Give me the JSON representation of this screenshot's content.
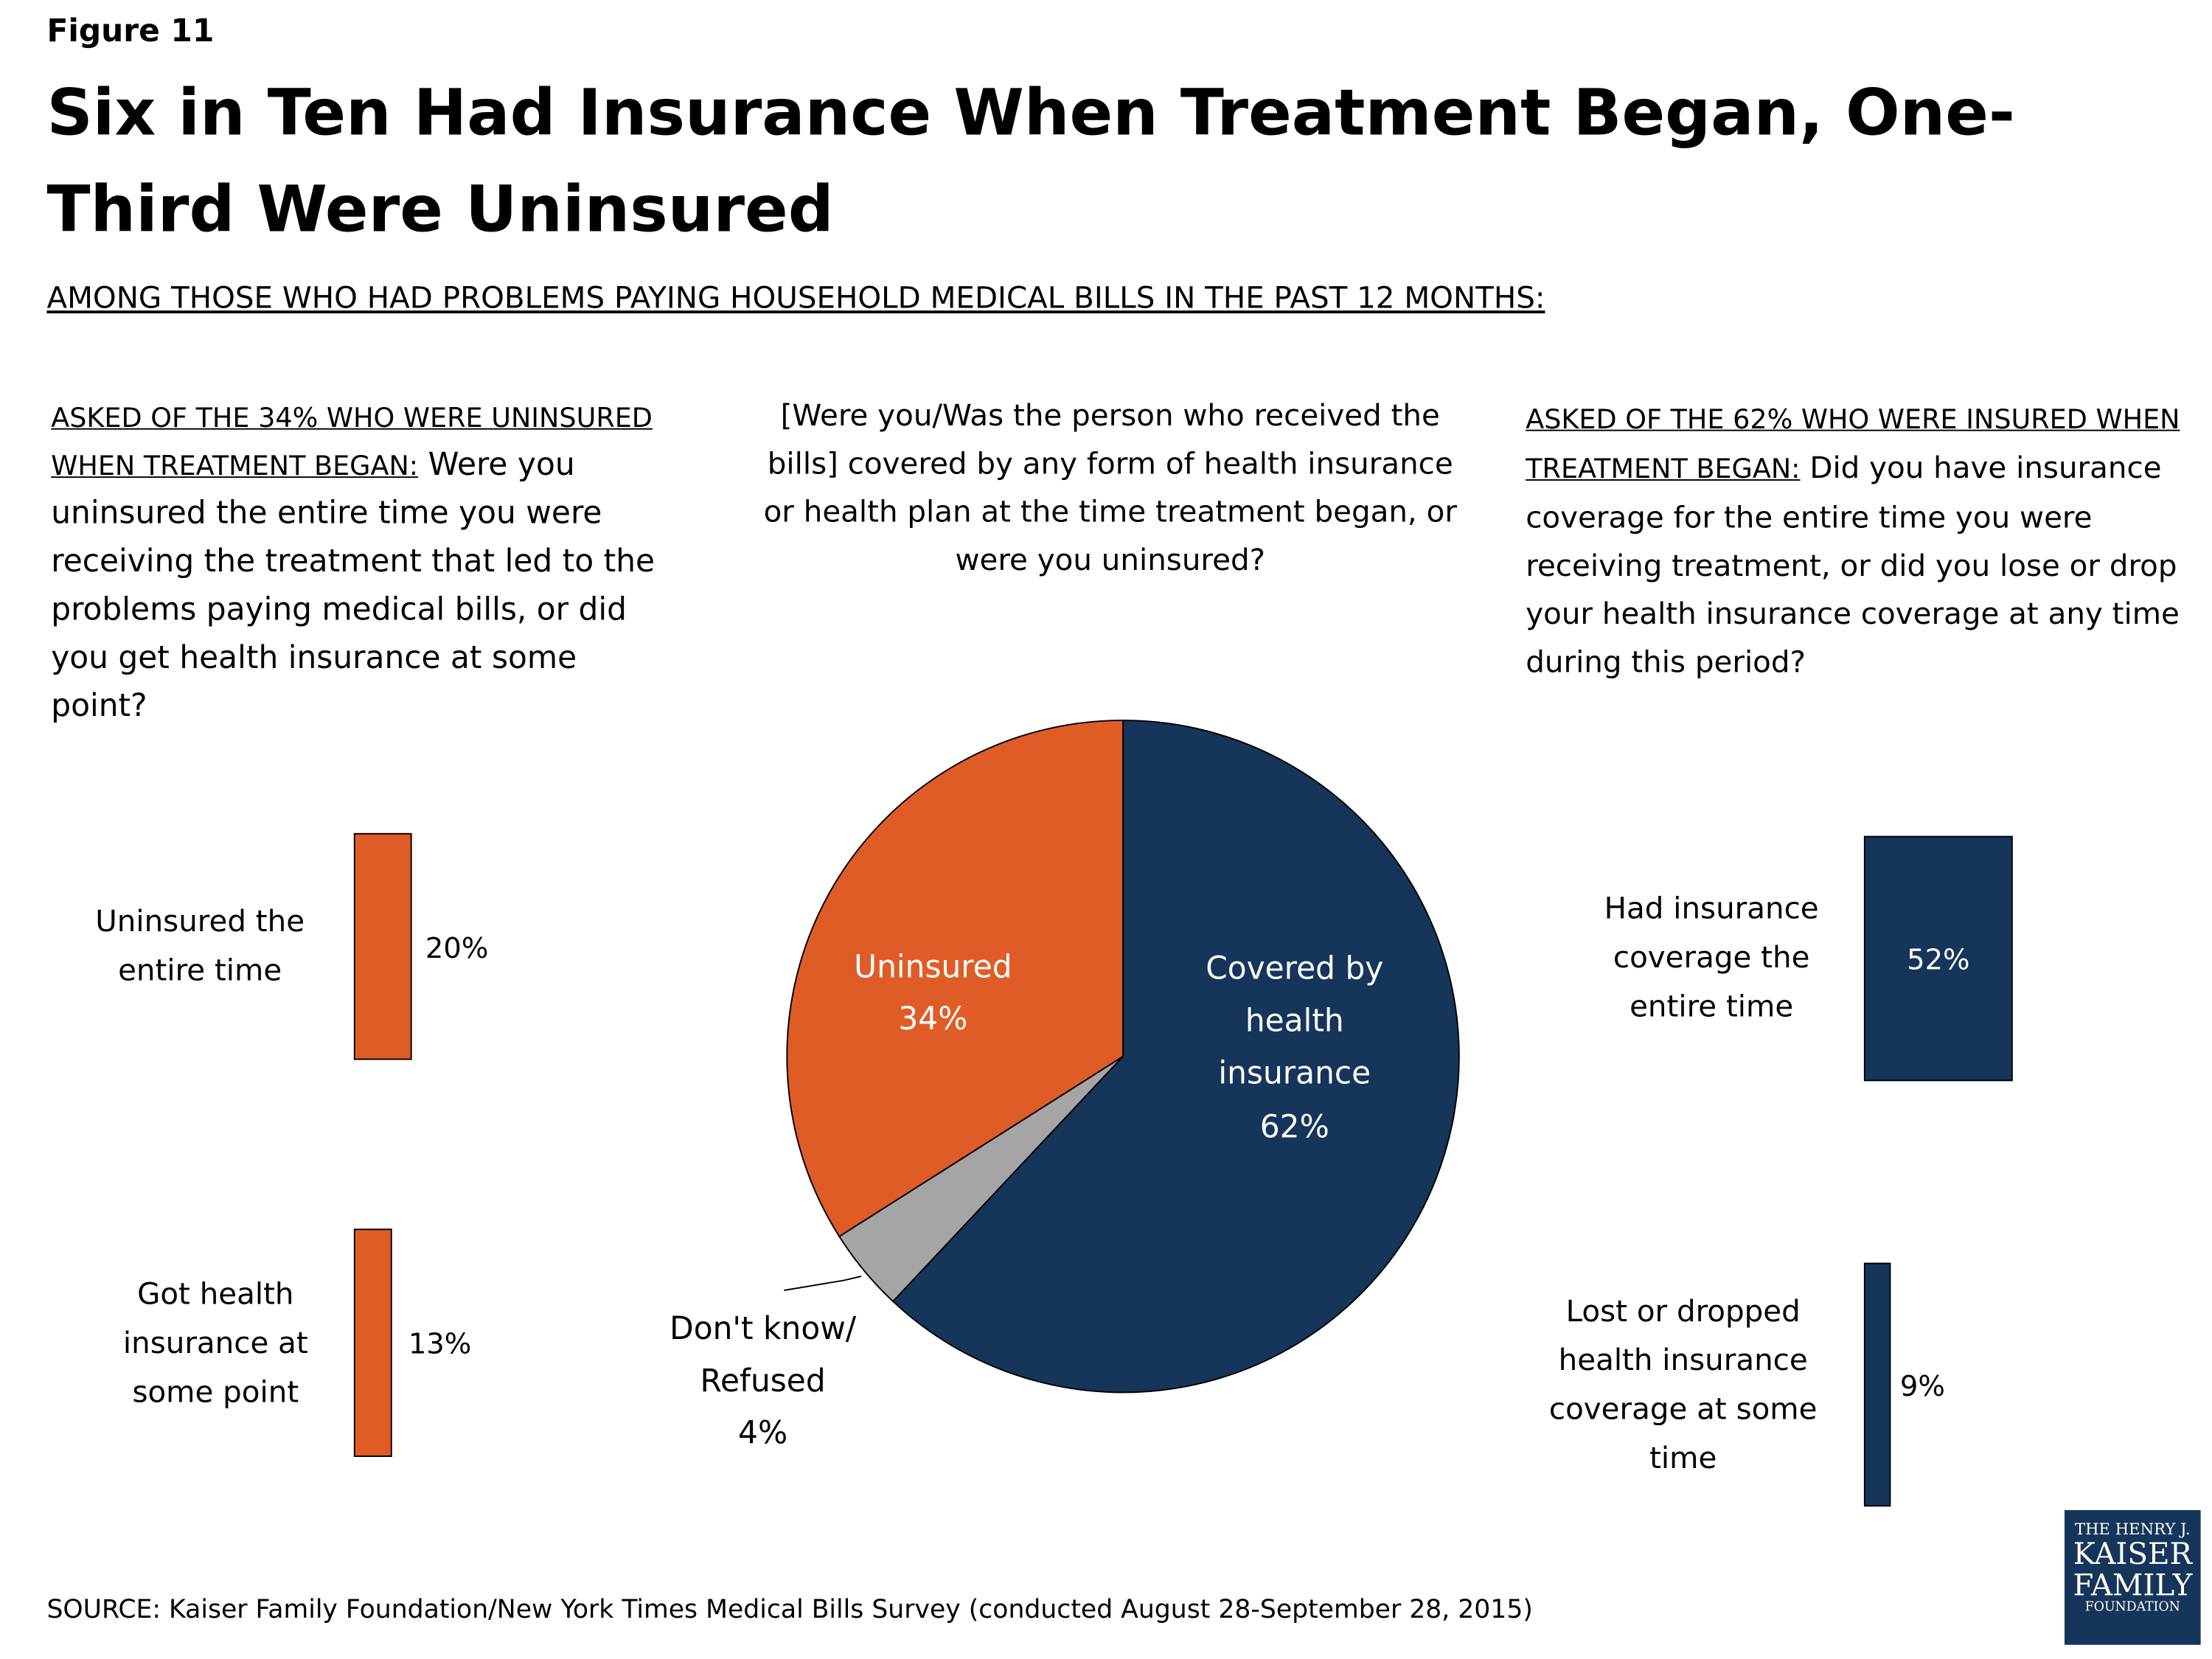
{
  "figure_label": "Figure 11",
  "title": "Six in Ten Had Insurance When Treatment Began, One-Third Were Uninsured",
  "subtitle": "AMONG THOSE WHO HAD PROBLEMS PAYING HOUSEHOLD MEDICAL BILLS IN THE PAST 12 MONTHS:",
  "source": "SOURCE: Kaiser Family Foundation/New York Times Medical Bills Survey (conducted August 28-September 28, 2015)",
  "logo": [
    "THE HENRY J.",
    "KAISER",
    "FAMILY",
    "FOUNDATION"
  ],
  "chart_data": [
    {
      "type": "bar",
      "orientation": "horizontal",
      "question_heading": "ASKED OF THE 34% WHO WERE UNINSURED WHEN TREATMENT BEGAN:",
      "question": "Were you uninsured the entire time you were receiving the treatment that led to the problems paying medical bills, or did you get health insurance at some point?",
      "categories": [
        "Uninsured the entire time",
        "Got health insurance at some point"
      ],
      "values": [
        20,
        13
      ],
      "value_labels": [
        "20%",
        "13%"
      ],
      "color": "#e05c27"
    },
    {
      "type": "pie",
      "question": "[Were you/Was the person who received the bills] covered by any form of health insurance or health plan at the time treatment began, or were you uninsured?",
      "categories": [
        "Covered by health insurance",
        "Don't know/ Refused",
        "Uninsured"
      ],
      "values": [
        62,
        4,
        34
      ],
      "value_labels": [
        "62%",
        "4%",
        "34%"
      ],
      "colors": [
        "#15355a",
        "#a5a5a5",
        "#e05c27"
      ]
    },
    {
      "type": "bar",
      "orientation": "horizontal",
      "question_heading": "ASKED OF THE 62% WHO WERE INSURED WHEN TREATMENT BEGAN:",
      "question": "Did you have insurance coverage for the entire time you were receiving treatment, or did you lose or drop your health insurance coverage at any time during this period?",
      "categories": [
        "Had insurance coverage the entire time",
        "Lost or dropped health insurance coverage at some time"
      ],
      "values": [
        52,
        9
      ],
      "value_labels": [
        "52%",
        "9%"
      ],
      "color": "#15355a"
    }
  ]
}
